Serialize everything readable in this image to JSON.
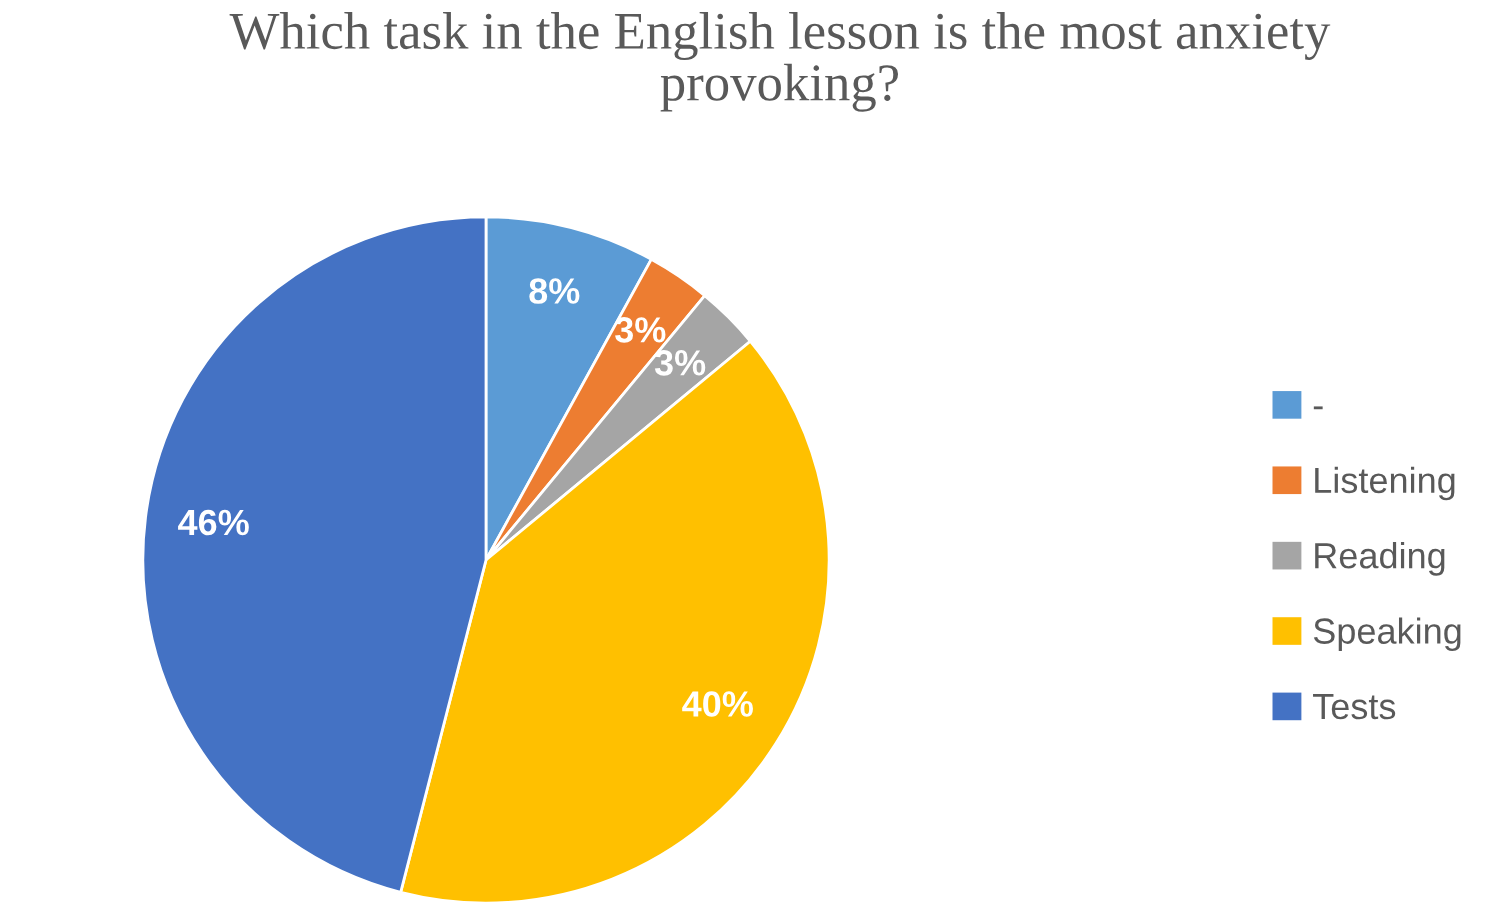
{
  "chart_data": {
    "type": "pie",
    "title": "Which task in the English lesson is the most anxiety provoking?",
    "categories": [
      "-",
      "Listening",
      "Reading",
      "Speaking",
      "Tests"
    ],
    "values": [
      8,
      3,
      3,
      40,
      46
    ],
    "colors": [
      "#5b9bd5",
      "#ed7d31",
      "#a5a5a5",
      "#ffc000",
      "#4472c4"
    ],
    "value_labels": [
      "8%",
      "3%",
      "3%",
      "40%",
      "46%"
    ],
    "legend": "right"
  }
}
